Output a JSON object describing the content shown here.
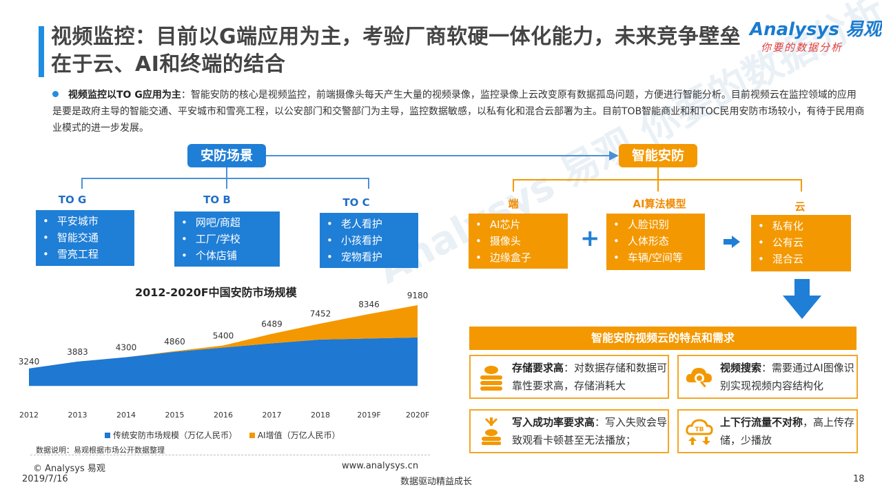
{
  "title": "视频监控：目前以G端应用为主，考验厂商软硬一体化能力，未来竞争壁垒在于云、AI和终端的结合",
  "logo": {
    "main": "Analysys 易观",
    "sub": "你要的数据分析"
  },
  "watermark": "Analysys 易观 你要的数据分析",
  "description": {
    "bold": "视频监控以TO G应用为主",
    "text": "：智能安防的核心是视频监控，前端摄像头每天产生大量的视频录像，监控录像上云改变原有数据孤岛问题，方便进行智能分析。目前视频云在监控领域的应用是要是政府主导的智能交通、平安城市和雪亮工程，以公安部门和交警部门为主导，监控数据敏感，以私有化和混合云部署为主。目前TOB智能商业和和TOC民用安防市场较小，有待于民用商业模式的进一步发展。"
  },
  "left_section": {
    "header": "安防场景",
    "categories": [
      {
        "label": "TO G",
        "items": [
          "平安城市",
          "智能交通",
          "雪亮工程"
        ]
      },
      {
        "label": "TO B",
        "items": [
          "网吧/商超",
          "工厂/学校",
          "个体店铺"
        ]
      },
      {
        "label": "TO C",
        "items": [
          "老人看护",
          "小孩看护",
          "宠物看护"
        ]
      }
    ]
  },
  "right_section": {
    "header": "智能安防",
    "categories": [
      {
        "label": "端",
        "items": [
          "AI芯片",
          "摄像头",
          "边缘盒子"
        ]
      },
      {
        "label": "AI算法模型",
        "items": [
          "人脸识别",
          "人体形态",
          "车辆/空间等"
        ]
      },
      {
        "label": "云",
        "items": [
          "私有化",
          "公有云",
          "混合云"
        ]
      }
    ],
    "plus": "+"
  },
  "features": {
    "header": "智能安防视频云的特点和需求",
    "items": [
      {
        "bold": "存储要求高",
        "text": "：对数据存储和数据可靠性要求高，存储消耗大",
        "icon": "storage-icon"
      },
      {
        "bold": "视频搜索",
        "text": "：需要通过AI图像识别实现视频内容结构化",
        "icon": "cloud-search-icon"
      },
      {
        "bold": "写入成功率要求高",
        "text": "：写入失败会导致观看卡顿甚至无法播放；",
        "icon": "write-icon"
      },
      {
        "bold": "上下行流量不对称",
        "text": "，高上传存储，少播放",
        "icon": "tb-cloud-icon",
        "icon_text": "TB"
      }
    ]
  },
  "chart_data": {
    "type": "area",
    "title": "2012-2020F中国安防市场规模",
    "x": [
      "2012",
      "2013",
      "2014",
      "2015",
      "2016",
      "2017",
      "2018",
      "2019F",
      "2020F"
    ],
    "totals": [
      3240,
      3883,
      4300,
      4860,
      5400,
      6489,
      7452,
      8346,
      9180
    ],
    "series": [
      {
        "name": "传统安防市场规模（万亿人民币）",
        "color": "#1f78d1",
        "values": [
          3240,
          3883,
          4300,
          4800,
          5200,
          5600,
          5950,
          6050,
          6150
        ]
      },
      {
        "name": "AI增值（万亿人民币）",
        "color": "#f39800",
        "values": [
          0,
          0,
          0,
          60,
          200,
          889,
          1502,
          2296,
          3030
        ]
      }
    ],
    "ylim": [
      0,
      9500
    ],
    "legend": "bottom"
  },
  "note": "数据说明：易观根据市场公开数据整理",
  "footer": {
    "copyright": "© Analysys 易观",
    "date": "2019/7/16",
    "website": "www.analysys.cn",
    "slogan": "数据驱动精益成长",
    "page": "18"
  }
}
